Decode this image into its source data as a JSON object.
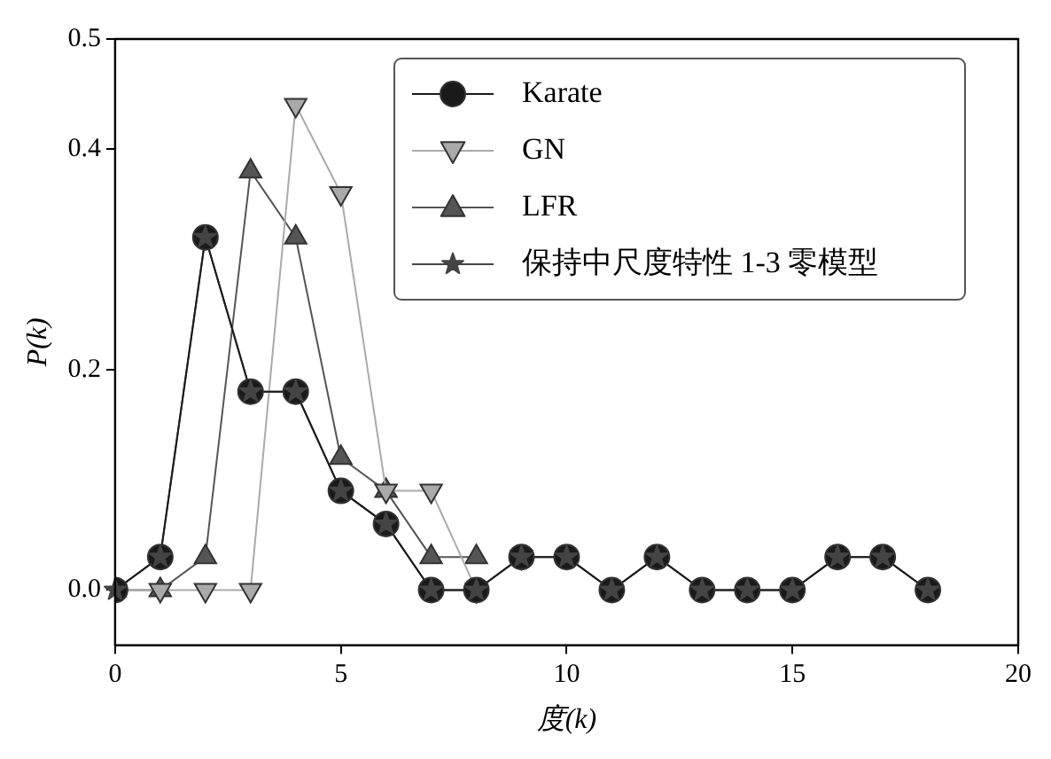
{
  "chart_data": {
    "type": "line",
    "xlabel": "度(k)",
    "ylabel": "P(k)",
    "xlim": [
      0,
      20
    ],
    "xticks": [
      0,
      5,
      10,
      15,
      20
    ],
    "ylim": [
      -0.05,
      0.5
    ],
    "yticks": [
      {
        "value": 0,
        "label": "0.0"
      },
      0.2,
      0.4,
      0.5
    ],
    "grid": false,
    "legend": "top right",
    "series": [
      {
        "name": "Karate",
        "color": "#1a1a1a",
        "marker": "circle",
        "x": [
          0,
          1,
          2,
          3,
          4,
          5,
          6,
          7,
          8,
          9,
          10,
          11,
          12,
          13,
          14,
          15,
          16,
          17,
          18
        ],
        "values": [
          0,
          0.03,
          0.32,
          0.18,
          0.18,
          0.09,
          0.06,
          0,
          0,
          0.03,
          0.03,
          0,
          0.03,
          0,
          0,
          0,
          0.03,
          0.03,
          0
        ]
      },
      {
        "name": "GN",
        "color": "#aaaaaa",
        "marker": "triangle_down",
        "x": [
          0,
          1,
          2,
          3,
          4,
          5,
          6,
          7,
          8,
          9
        ],
        "values": [
          0,
          0,
          0,
          0,
          0.44,
          0.36,
          0.09,
          0.09,
          0,
          0.03
        ]
      },
      {
        "name": "LFR",
        "color": "#555555",
        "marker": "triangle",
        "x": [
          0,
          1,
          2,
          3,
          4,
          5,
          6,
          7,
          8
        ],
        "values": [
          0,
          0,
          0.03,
          0.38,
          0.32,
          0.12,
          0.09,
          0.03,
          0.03
        ]
      },
      {
        "name": "保持中尺度特性 1-3 零模型",
        "color": "#444444",
        "marker": "star",
        "x": [
          0,
          1,
          2,
          3,
          4,
          5,
          6,
          7,
          8,
          9,
          10,
          11,
          12,
          13,
          14,
          15,
          16,
          17,
          18
        ],
        "values": [
          0,
          0.03,
          0.32,
          0.18,
          0.18,
          0.09,
          0.06,
          0,
          0,
          0.03,
          0.03,
          0,
          0.03,
          0,
          0,
          0,
          0.03,
          0.03,
          0
        ]
      }
    ]
  }
}
